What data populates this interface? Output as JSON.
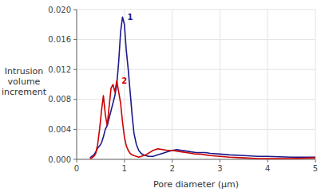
{
  "chart_data": {
    "type": "line",
    "x_label": "Pore diameter (μm)",
    "y_label": "Intrusion\nvolume\nincrement",
    "xlim": [
      0,
      5
    ],
    "ylim": [
      0,
      0.02
    ],
    "xticks": [
      0,
      1,
      2,
      3,
      4,
      5
    ],
    "yticks": [
      {
        "value": 0,
        "label": "0.000"
      },
      0.004,
      0.008,
      0.012,
      0.016,
      {
        "value": 0.02,
        "label": "0.020"
      }
    ],
    "grid": true,
    "x": [
      0.28,
      0.32,
      0.36,
      0.4,
      0.44,
      0.48,
      0.52,
      0.56,
      0.6,
      0.64,
      0.68,
      0.72,
      0.76,
      0.8,
      0.84,
      0.88,
      0.92,
      0.96,
      1.0,
      1.04,
      1.08,
      1.12,
      1.16,
      1.2,
      1.25,
      1.3,
      1.35,
      1.4,
      1.45,
      1.5,
      1.55,
      1.6,
      1.65,
      1.7,
      1.8,
      1.9,
      2.0,
      2.1,
      2.2,
      2.3,
      2.4,
      2.5,
      2.6,
      2.7,
      2.8,
      3.0,
      3.2,
      3.5,
      3.8,
      4.0,
      4.5,
      5.0
    ],
    "series": [
      {
        "name": "1",
        "color": "#1a1a8c",
        "values": [
          0.0002,
          0.0004,
          0.0006,
          0.001,
          0.0015,
          0.0018,
          0.0022,
          0.003,
          0.004,
          0.0045,
          0.0055,
          0.0065,
          0.0075,
          0.0085,
          0.01,
          0.013,
          0.017,
          0.019,
          0.018,
          0.0145,
          0.012,
          0.009,
          0.006,
          0.0035,
          0.002,
          0.0012,
          0.0008,
          0.0006,
          0.0005,
          0.0004,
          0.0004,
          0.0004,
          0.0005,
          0.0006,
          0.0008,
          0.001,
          0.0012,
          0.0013,
          0.0012,
          0.0011,
          0.001,
          0.0009,
          0.0009,
          0.0009,
          0.0008,
          0.0007,
          0.0006,
          0.0005,
          0.0004,
          0.0004,
          0.0003,
          0.0003
        ]
      },
      {
        "name": "2",
        "color": "#cc0000",
        "values": [
          0.0001,
          0.0002,
          0.0004,
          0.0008,
          0.002,
          0.004,
          0.0065,
          0.0085,
          0.006,
          0.0045,
          0.007,
          0.0095,
          0.01,
          0.009,
          0.0105,
          0.009,
          0.0075,
          0.005,
          0.003,
          0.0018,
          0.0012,
          0.0008,
          0.0006,
          0.0005,
          0.0004,
          0.0003,
          0.0004,
          0.0005,
          0.0006,
          0.0008,
          0.001,
          0.0012,
          0.0013,
          0.0014,
          0.0013,
          0.0012,
          0.0012,
          0.0011,
          0.001,
          0.0009,
          0.0008,
          0.0007,
          0.0007,
          0.0006,
          0.0005,
          0.0004,
          0.0003,
          0.0002,
          0.0001,
          0.0001,
          0.0001,
          0.0002
        ]
      }
    ]
  }
}
